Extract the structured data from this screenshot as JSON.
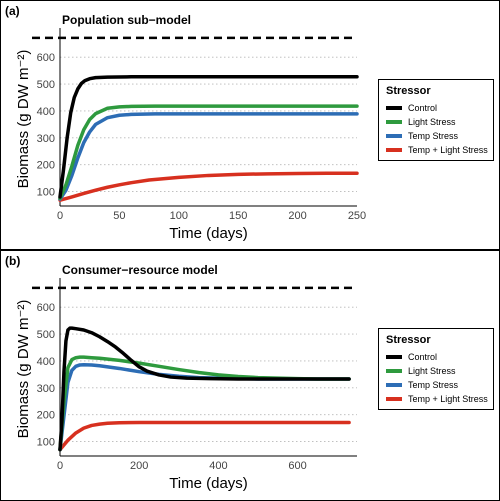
{
  "panels": [
    {
      "label": "(a)",
      "legend_title": "Stressor",
      "chart_data": {
        "type": "line",
        "title": "Population sub−model",
        "xlabel": "Time (days)",
        "ylabel": "Biomass (g DW m⁻²)",
        "xlim": [
          0,
          250
        ],
        "ylim": [
          50,
          690
        ],
        "x_ticks": [
          0,
          50,
          100,
          150,
          200,
          250
        ],
        "y_ticks": [
          100,
          200,
          300,
          400,
          500,
          600
        ],
        "grid": "horizontal dotted",
        "legend": "right",
        "reference_line": {
          "y": 672,
          "style": "dashed",
          "color": "#000000"
        },
        "series": [
          {
            "name": "Control",
            "color": "#000000",
            "x": [
              0,
              3,
              6,
              9,
              12,
              15,
              18,
              21,
              25,
              30,
              40,
              60,
              100,
              150,
              200,
              250
            ],
            "y": [
              80,
              183,
              300,
              393,
              450,
              482,
              502,
              513,
              520,
              524,
              526,
              527,
              527,
              527,
              527,
              527
            ]
          },
          {
            "name": "Light Stress",
            "color": "#2e9a3e",
            "x": [
              0,
              5,
              10,
              15,
              20,
              25,
              30,
              40,
              50,
              60,
              80,
              100,
              150,
              200,
              250
            ],
            "y": [
              75,
              125,
              195,
              272,
              330,
              368,
              390,
              410,
              415,
              417,
              418,
              418,
              418,
              418,
              418
            ]
          },
          {
            "name": "Temp Stress",
            "color": "#2d6db5",
            "x": [
              0,
              5,
              10,
              15,
              20,
              25,
              30,
              40,
              50,
              60,
              80,
              100,
              150,
              200,
              250
            ],
            "y": [
              72,
              105,
              160,
              225,
              282,
              322,
              350,
              375,
              384,
              387,
              389,
              389,
              389,
              389,
              389
            ]
          },
          {
            "name": "Temp + Light Stress",
            "color": "#d7301f",
            "x": [
              0,
              10,
              20,
              30,
              40,
              50,
              60,
              75,
              100,
              125,
              150,
              175,
              200,
              225,
              250
            ],
            "y": [
              68,
              80,
              93,
              105,
              116,
              125,
              133,
              143,
              153,
              160,
              164,
              166,
              167,
              168,
              168
            ]
          }
        ]
      }
    },
    {
      "label": "(b)",
      "legend_title": "Stressor",
      "chart_data": {
        "type": "line",
        "title": "Consumer−resource model",
        "xlabel": "Time (days)",
        "ylabel": "Biomass (g DW m⁻²)",
        "xlim": [
          0,
          750
        ],
        "ylim": [
          50,
          690
        ],
        "x_ticks": [
          0,
          200,
          400,
          600
        ],
        "y_ticks": [
          100,
          200,
          300,
          400,
          500,
          600
        ],
        "grid": "horizontal dotted",
        "legend": "right",
        "reference_line": {
          "y": 672,
          "style": "dashed",
          "color": "#000000"
        },
        "series": [
          {
            "name": "Control",
            "color": "#000000",
            "x": [
              0,
              5,
              10,
              15,
              20,
              25,
              30,
              40,
              60,
              80,
              100,
              120,
              140,
              160,
              180,
              200,
              220,
              250,
              280,
              320,
              380,
              450,
              550,
              650,
              730
            ],
            "y": [
              70,
              180,
              360,
              475,
              515,
              522,
              522,
              520,
              515,
              505,
              490,
              472,
              452,
              428,
              402,
              378,
              362,
              348,
              340,
              336,
              334,
              333,
              333,
              333,
              333
            ]
          },
          {
            "name": "Light Stress",
            "color": "#2e9a3e",
            "x": [
              0,
              10,
              20,
              30,
              40,
              50,
              60,
              80,
              100,
              150,
              200,
              250,
              300,
              350,
              400,
              450,
              500,
              550,
              600,
              650,
              730
            ],
            "y": [
              70,
              250,
              375,
              405,
              412,
              414,
              414,
              412,
              410,
              402,
              392,
              380,
              368,
              357,
              348,
              342,
              338,
              336,
              334,
              333,
              333
            ]
          },
          {
            "name": "Temp Stress",
            "color": "#2d6db5",
            "x": [
              0,
              10,
              20,
              30,
              40,
              50,
              60,
              80,
              100,
              150,
              200,
              250,
              300,
              350,
              400,
              450,
              500,
              600,
              730
            ],
            "y": [
              70,
              195,
              320,
              365,
              380,
              385,
              386,
              385,
              382,
              372,
              360,
              350,
              343,
              338,
              336,
              334,
              333,
              333,
              333
            ]
          },
          {
            "name": "Temp + Light Stress",
            "color": "#d7301f",
            "x": [
              0,
              20,
              40,
              60,
              80,
              100,
              120,
              150,
              200,
              300,
              400,
              500,
              600,
              730
            ],
            "y": [
              70,
              105,
              132,
              150,
              160,
              165,
              168,
              170,
              171,
              171,
              171,
              171,
              171,
              171
            ]
          }
        ]
      }
    }
  ]
}
